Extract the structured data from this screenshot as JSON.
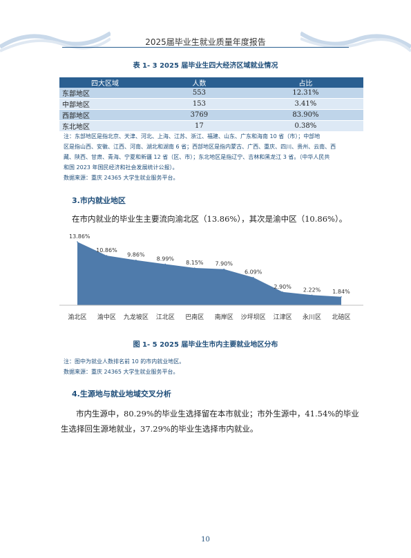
{
  "header": {
    "title": "2025届毕业生就业质量年度报告"
  },
  "table": {
    "caption": "表 1- 3  2025 届毕业生四大经济区域就业情况",
    "headers": [
      "四大区域",
      "人数",
      "占比"
    ],
    "rows": [
      [
        "东部地区",
        "553",
        "12.31%"
      ],
      [
        "中部地区",
        "153",
        "3.41%"
      ],
      [
        "西部地区",
        "3769",
        "83.90%"
      ],
      [
        "东北地区",
        "17",
        "0.38%"
      ]
    ],
    "note_lines": [
      "注：东部地区是指北京、天津、河北、上海、江苏、浙江、福建、山东、广东和海南 10 省（市）；中部地",
      "区是指山西、安徽、江西、河南、湖北和湖南 6 省；西部地区是指内蒙古、广西、重庆、四川、贵州、云南、西",
      "藏、陕西、甘肃、青海、宁夏和新疆 12 省（区、市）；东北地区是指辽宁、吉林和黑龙江 3 省。（中华人民共",
      "和国 2023 年国民经济和社会发展统计公报）。"
    ],
    "source": "数据来源：重庆 24365 大学生就业服务平台。"
  },
  "section3": {
    "title": "3.市内就业地区",
    "paragraph": "在市内就业的毕业生主要流向渝北区（13.86%），其次是渝中区（10.86%）。"
  },
  "chart_data": {
    "type": "area",
    "categories": [
      "渝北区",
      "渝中区",
      "九龙坡区",
      "江北区",
      "巴南区",
      "南岸区",
      "沙坪坝区",
      "江津区",
      "永川区",
      "北碚区"
    ],
    "values": [
      13.86,
      10.86,
      9.86,
      8.99,
      8.15,
      7.9,
      6.09,
      2.9,
      2.22,
      1.84
    ],
    "data_labels": [
      "13.86%",
      "10.86%",
      "9.86%",
      "8.99%",
      "8.15%",
      "7.90%",
      "6.09%",
      "2.90%",
      "2.22%",
      "1.84%"
    ],
    "ylim": [
      0,
      14.5
    ],
    "grid": false,
    "legend": "none",
    "color": "#4f7bab"
  },
  "figure": {
    "caption": "图 1- 5  2025 届毕业生市内主要就业地区分布",
    "note": "注：图中为就业人数排名前 10 的市内就业地区。",
    "source": "数据来源：重庆 24365 大学生就业服务平台。"
  },
  "section4": {
    "title": "4.生源地与就业地域交叉分析",
    "paragraph_lines": [
      "市内生源中，80.29%的毕业生选择留在本市就业；市外生源中，41.54%的毕业",
      "生选择回生源地就业，37.29%的毕业生选择市内就业。"
    ]
  },
  "page_number": "10"
}
